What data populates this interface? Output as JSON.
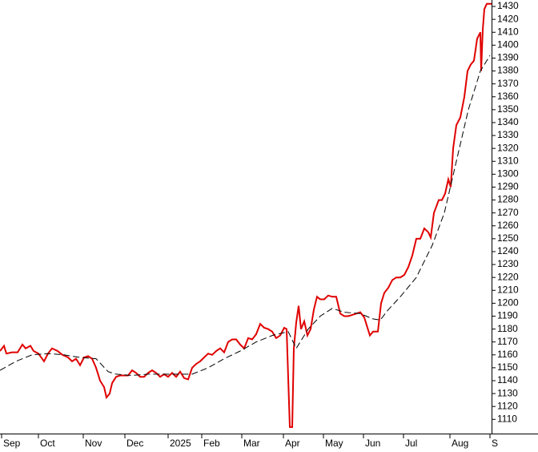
{
  "chart_data": {
    "type": "line",
    "series": [
      {
        "color": "#e00000",
        "dashed": false,
        "x": [
          0,
          2.5,
          4,
          7.5,
          11,
          14,
          16,
          19,
          21,
          24,
          27.5,
          30,
          32.5,
          36,
          39,
          42.5,
          45,
          47.5,
          50,
          52.5,
          55,
          57.5,
          60,
          62.5,
          65,
          66.5,
          68.5,
          70,
          72.5,
          75,
          77.5,
          80,
          82.5,
          85,
          87.5,
          90,
          92.5,
          95,
          97.5,
          100,
          102.5,
          105,
          107.5,
          110,
          112.5,
          115,
          117.5,
          120,
          122.5,
          125,
          127.5,
          130,
          132.5,
          135,
          137.5,
          140,
          142.5,
          145,
          147.5,
          150,
          152.5,
          155,
          157.5,
          160,
          162.5,
          165,
          167.5,
          170,
          172.5,
          175,
          177.5,
          179,
          181,
          182.5,
          183.5,
          185,
          186.5,
          188,
          190,
          192,
          194,
          196,
          198,
          200,
          202.5,
          205,
          207.5,
          210,
          212.5,
          215,
          217.5,
          220,
          222.5,
          225,
          227.5,
          231,
          233,
          236,
          238,
          240,
          242.5,
          245,
          247.5,
          250,
          252.5,
          255,
          257.5,
          260,
          262.5,
          265,
          267.5,
          269,
          271,
          274,
          276,
          278,
          280,
          281.5,
          283,
          285,
          287.5,
          290,
          292,
          294,
          296,
          298,
          300,
          300.5,
          301.5,
          302.5,
          304,
          307
        ],
        "values": [
          1163,
          1167,
          1161,
          1162,
          1162,
          1168,
          1165,
          1167,
          1163,
          1161,
          1155,
          1161,
          1165,
          1163,
          1160,
          1158,
          1155,
          1157,
          1152,
          1158,
          1159,
          1157,
          1150,
          1140,
          1135,
          1127,
          1130,
          1138,
          1143,
          1144,
          1144,
          1144,
          1148,
          1146,
          1143,
          1143,
          1146,
          1148,
          1146,
          1143,
          1145,
          1143,
          1146,
          1143,
          1147,
          1142,
          1141,
          1150,
          1153,
          1155,
          1158,
          1161,
          1160,
          1163,
          1165,
          1162,
          1170,
          1172,
          1172,
          1168,
          1165,
          1173,
          1172,
          1176,
          1184,
          1181,
          1180,
          1178,
          1173,
          1175,
          1181,
          1180,
          1104,
          1104,
          1165,
          1185,
          1198,
          1180,
          1186,
          1175,
          1180,
          1195,
          1205,
          1203,
          1203,
          1206,
          1205,
          1205,
          1192,
          1190,
          1190,
          1191,
          1192,
          1193,
          1189,
          1175,
          1178,
          1178,
          1200,
          1208,
          1212,
          1218,
          1220,
          1220,
          1222,
          1228,
          1237,
          1250,
          1250,
          1258,
          1255,
          1251,
          1270,
          1280,
          1280,
          1285,
          1296,
          1290,
          1320,
          1338,
          1344,
          1360,
          1380,
          1385,
          1388,
          1405,
          1410,
          1380,
          1412,
          1428,
          1432,
          1432
        ]
      },
      {
        "color": "#000000",
        "dashed": true,
        "x": [
          0,
          10,
          20,
          30,
          40,
          50,
          60,
          67.5,
          72.5,
          82.5,
          92.5,
          100,
          110,
          120,
          130,
          140,
          150,
          160,
          170,
          180,
          185,
          187.5,
          192.5,
          200,
          207.5,
          215,
          225,
          232.5,
          237.5,
          242.5,
          250,
          260,
          270,
          277.5,
          285,
          292.5,
          300,
          306
        ],
        "values": [
          1148,
          1155,
          1160,
          1161,
          1160,
          1158,
          1157,
          1147,
          1145,
          1144,
          1145,
          1145,
          1145,
          1145,
          1150,
          1157,
          1163,
          1170,
          1175,
          1178,
          1165,
          1170,
          1180,
          1190,
          1196,
          1193,
          1192,
          1188,
          1187,
          1195,
          1205,
          1220,
          1245,
          1270,
          1310,
          1350,
          1380,
          1392
        ]
      }
    ],
    "xlim": [
      0,
      307
    ],
    "xticks": [
      {
        "value": 1,
        "label": "Sep"
      },
      {
        "value": 24,
        "label": "Oct"
      },
      {
        "value": 52,
        "label": "Nov"
      },
      {
        "value": 78,
        "label": "Dec"
      },
      {
        "value": 105,
        "label": "2025"
      },
      {
        "value": 126,
        "label": "Feb"
      },
      {
        "value": 151,
        "label": "Mar"
      },
      {
        "value": 177,
        "label": "Apr"
      },
      {
        "value": 202,
        "label": "May"
      },
      {
        "value": 227,
        "label": "Jun"
      },
      {
        "value": 252,
        "label": "Jul"
      },
      {
        "value": 281,
        "label": "Aug"
      },
      {
        "value": 306,
        "label": "S"
      }
    ],
    "ylim": [
      1099,
      1435
    ],
    "yticks": [
      1110,
      1120,
      1130,
      1140,
      1150,
      1160,
      1170,
      1180,
      1190,
      1200,
      1210,
      1220,
      1230,
      1240,
      1250,
      1260,
      1270,
      1280,
      1290,
      1300,
      1310,
      1320,
      1330,
      1340,
      1350,
      1360,
      1370,
      1380,
      1390,
      1400,
      1410,
      1420,
      1430
    ]
  }
}
